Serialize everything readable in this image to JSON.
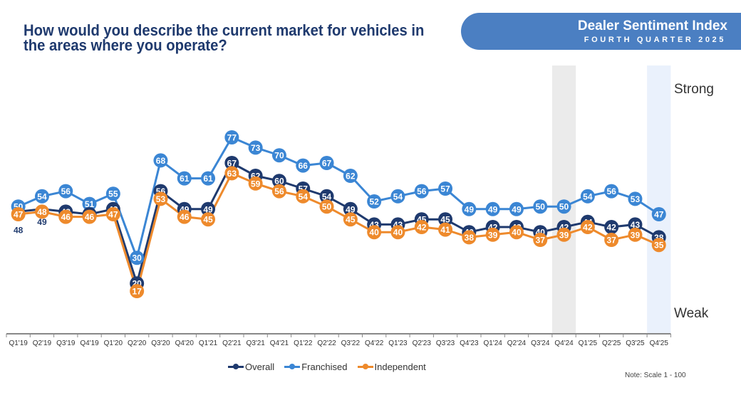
{
  "header": {
    "question": "How would you describe the current market for vehicles in the areas where you operate?",
    "banner_title": "Dealer Sentiment Index",
    "banner_subtitle": "FOURTH QUARTER 2025"
  },
  "labels": {
    "strong": "Strong",
    "weak": "Weak"
  },
  "note": "Note: Scale 1 - 100",
  "colors": {
    "overall": "#1f3a6e",
    "franchised": "#3b86d4",
    "independent": "#ee8a2c",
    "banner": "#4b7fc2",
    "highlight_prev": "#ebebeb",
    "highlight_current": "#eaf1fc"
  },
  "chart_data": {
    "type": "line",
    "title": "How would you describe the current market for vehicles in the areas where you operate?",
    "xlabel": "",
    "ylabel": "",
    "y_scale_note": "Scale 1 - 100",
    "y_axis_labels": {
      "top": "Strong",
      "bottom": "Weak"
    },
    "highlighted_categories": [
      "Q4'24",
      "Q4'25"
    ],
    "legend_position": "bottom",
    "grid": false,
    "categories": [
      "Q1'19",
      "Q2'19",
      "Q3'19",
      "Q4'19",
      "Q1'20",
      "Q2'20",
      "Q3'20",
      "Q4'20",
      "Q1'21",
      "Q2'21",
      "Q3'21",
      "Q4'21",
      "Q1'22",
      "Q2'22",
      "Q3'22",
      "Q4'22",
      "Q1'23",
      "Q2'23",
      "Q3'23",
      "Q4'23",
      "Q1'24",
      "Q2'24",
      "Q3'24",
      "Q4'24",
      "Q1'25",
      "Q2'25",
      "Q3'25",
      "Q4'25"
    ],
    "series": [
      {
        "name": "Overall",
        "key": "overall",
        "values": [
          48,
          49,
          48,
          47,
          49,
          20,
          56,
          49,
          49,
          67,
          62,
          60,
          57,
          54,
          49,
          43,
          43,
          45,
          45,
          40,
          42,
          42,
          40,
          42,
          44,
          42,
          43,
          38
        ]
      },
      {
        "name": "Franchised",
        "key": "franchised",
        "values": [
          50,
          54,
          56,
          51,
          55,
          30,
          68,
          61,
          61,
          77,
          73,
          70,
          66,
          67,
          62,
          52,
          54,
          56,
          57,
          49,
          49,
          49,
          50,
          50,
          54,
          56,
          53,
          47
        ]
      },
      {
        "name": "Independent",
        "key": "independent",
        "values": [
          47,
          48,
          46,
          46,
          47,
          17,
          53,
          46,
          45,
          63,
          59,
          56,
          54,
          50,
          45,
          40,
          40,
          42,
          41,
          38,
          39,
          40,
          37,
          39,
          42,
          37,
          39,
          35
        ]
      }
    ]
  }
}
